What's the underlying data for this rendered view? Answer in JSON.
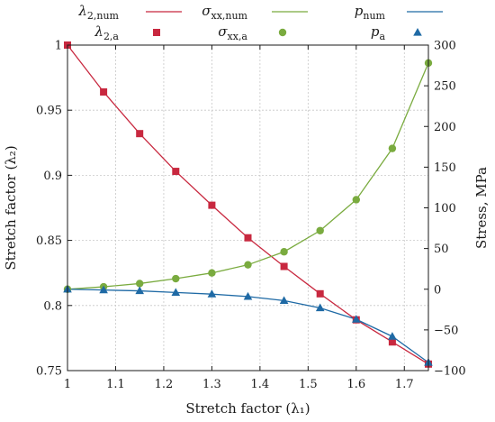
{
  "chart_data": {
    "type": "line",
    "title": "",
    "xlabel": "Stretch factor (λ₁)",
    "ylabel_left": "Stretch factor (λ₂)",
    "ylabel_right": "Stress, MPa",
    "xlim": [
      1,
      1.75
    ],
    "ylim_left": [
      0.75,
      1
    ],
    "ylim_right": [
      -100,
      300
    ],
    "x_ticks": [
      "1",
      "1.1",
      "1.2",
      "1.3",
      "1.4",
      "1.5",
      "1.6",
      "1.7"
    ],
    "y_ticks_left": [
      "0.75",
      "0.8",
      "0.85",
      "0.9",
      "0.95",
      "1"
    ],
    "y_ticks_right": [
      "−100",
      "−50",
      "0",
      "50",
      "100",
      "150",
      "200",
      "250",
      "300"
    ],
    "grid": true,
    "legend_placement": "top",
    "series": [
      {
        "name": "λ2,num",
        "base": "λ",
        "sub": "2,num",
        "axis": "left",
        "style": "line",
        "color": "#c8283f",
        "x": [
          1,
          1.075,
          1.15,
          1.225,
          1.3,
          1.375,
          1.45,
          1.525,
          1.6,
          1.675,
          1.75
        ],
        "y": [
          1.0,
          0.964,
          0.932,
          0.903,
          0.877,
          0.852,
          0.83,
          0.809,
          0.789,
          0.772,
          0.755
        ]
      },
      {
        "name": "λ2,a",
        "base": "λ",
        "sub": "2,a",
        "axis": "left",
        "style": "marker",
        "marker": "square",
        "color": "#c8283f",
        "x": [
          1,
          1.075,
          1.15,
          1.225,
          1.3,
          1.375,
          1.45,
          1.525,
          1.6,
          1.675,
          1.75
        ],
        "y": [
          1.0,
          0.964,
          0.932,
          0.903,
          0.877,
          0.852,
          0.83,
          0.809,
          0.789,
          0.772,
          0.755
        ]
      },
      {
        "name": "σxx,num",
        "base": "σ",
        "sub": "xx,num",
        "axis": "right",
        "style": "line",
        "color": "#7aab3f",
        "x": [
          1,
          1.075,
          1.15,
          1.225,
          1.3,
          1.375,
          1.45,
          1.525,
          1.6,
          1.675,
          1.75
        ],
        "y": [
          0,
          3,
          7,
          13,
          20,
          30,
          46,
          72,
          110,
          173,
          278
        ]
      },
      {
        "name": "σxx,a",
        "base": "σ",
        "sub": "xx,a",
        "axis": "right",
        "style": "marker",
        "marker": "circle",
        "color": "#7aab3f",
        "x": [
          1,
          1.075,
          1.15,
          1.225,
          1.3,
          1.375,
          1.45,
          1.525,
          1.6,
          1.675,
          1.75
        ],
        "y": [
          0,
          3,
          7,
          13,
          20,
          30,
          46,
          72,
          110,
          173,
          278
        ]
      },
      {
        "name": "pnum",
        "base": "p",
        "sub": "num",
        "axis": "right",
        "style": "line",
        "color": "#1f6aa5",
        "x": [
          1,
          1.075,
          1.15,
          1.225,
          1.3,
          1.375,
          1.45,
          1.525,
          1.6,
          1.675,
          1.75
        ],
        "y": [
          0,
          -1,
          -2,
          -4,
          -6,
          -9,
          -14,
          -23,
          -37,
          -58,
          -90
        ]
      },
      {
        "name": "pa",
        "base": "p",
        "sub": "a",
        "axis": "right",
        "style": "marker",
        "marker": "triangle",
        "color": "#1f6aa5",
        "x": [
          1,
          1.075,
          1.15,
          1.225,
          1.3,
          1.375,
          1.45,
          1.525,
          1.6,
          1.675,
          1.75
        ],
        "y": [
          0,
          -1,
          -2,
          -4,
          -6,
          -9,
          -14,
          -23,
          -37,
          -58,
          -90
        ]
      }
    ]
  }
}
